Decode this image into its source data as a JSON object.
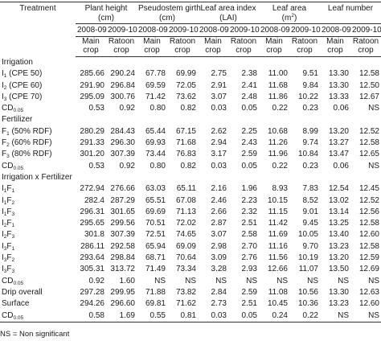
{
  "table": {
    "corner": "Treatment",
    "groups": [
      [
        {
          "t": "Plant height"
        },
        {
          "br": "(cm)"
        }
      ],
      [
        {
          "t": "Pseudostem girth"
        },
        {
          "br": "(cm)"
        }
      ],
      [
        {
          "t": "Leaf area index"
        },
        {
          "br": "(LAI)"
        }
      ],
      [
        {
          "t": "Leaf area"
        },
        {
          "br": "(m"
        },
        {
          "sup": "2"
        },
        {
          "t": ")"
        }
      ],
      [
        {
          "t": "Leaf number"
        }
      ]
    ],
    "years": [
      "2008-09",
      "2009-10",
      "2008-09",
      "2009-10",
      "2008-09",
      "2009-10",
      "2008-09",
      "2009-10",
      "2008-09",
      "2009-10"
    ],
    "crops": [
      [
        "Main",
        "crop"
      ],
      [
        "Ratoon",
        "crop"
      ],
      [
        "Main",
        "crop"
      ],
      [
        "Ratoon",
        "crop"
      ],
      [
        "Main",
        "crop"
      ],
      [
        "Ratoon",
        "crop"
      ],
      [
        "Main",
        "crop"
      ],
      [
        "Ratoon",
        "crop"
      ],
      [
        "Main",
        "crop"
      ],
      [
        "Ratoon",
        "crop"
      ]
    ],
    "rows": [
      {
        "section": "Irrigation"
      },
      {
        "label": [
          {
            "t": "I"
          },
          {
            "sub": "1"
          },
          {
            "t": " (CPE 50)"
          }
        ],
        "cells": [
          "285.66",
          "290.24",
          "67.78",
          "69.99",
          "2.75",
          "2.38",
          "11.00",
          "9.51",
          "13.30",
          "12.58"
        ]
      },
      {
        "label": [
          {
            "t": "I"
          },
          {
            "sub": "2"
          },
          {
            "t": " (CPE 60)"
          }
        ],
        "cells": [
          "291.90",
          "296.84",
          "69.59",
          "72.05",
          "2.91",
          "2.41",
          "11.68",
          "9.84",
          "13.30",
          "12.50"
        ]
      },
      {
        "label": [
          {
            "t": "I"
          },
          {
            "sub": "3"
          },
          {
            "t": " (CPE 70)"
          }
        ],
        "cells": [
          "295.09",
          "300.76",
          "71.42",
          "73.62",
          "3.07",
          "2.48",
          "11.86",
          "10.22",
          "13.33",
          "12.67"
        ]
      },
      {
        "label": [
          {
            "t": "CD"
          },
          {
            "sub": "0.05"
          }
        ],
        "cells": [
          "0.53",
          "0.92",
          "0.80",
          "0.82",
          "0.03",
          "0.05",
          "0.22",
          "0.23",
          "0.06",
          "NS"
        ]
      },
      {
        "section": "Fertilizer"
      },
      {
        "label": [
          {
            "t": "F"
          },
          {
            "sub": "1"
          },
          {
            "t": " (50% RDF)"
          }
        ],
        "cells": [
          "280.29",
          "284.43",
          "65.44",
          "67.15",
          "2.62",
          "2.25",
          "10.68",
          "8.99",
          "13.20",
          "12.52"
        ]
      },
      {
        "label": [
          {
            "t": "F"
          },
          {
            "sub": "2"
          },
          {
            "t": " (60% RDF)"
          }
        ],
        "cells": [
          "291.33",
          "296.30",
          "69.93",
          "71.68",
          "2.94",
          "2.43",
          "11.26",
          "9.74",
          "13.27",
          "12.58"
        ]
      },
      {
        "label": [
          {
            "t": "F"
          },
          {
            "sub": "3"
          },
          {
            "t": " (80% RDF)"
          }
        ],
        "cells": [
          "301.20",
          "307.39",
          "73.44",
          "76.83",
          "3.17",
          "2.59",
          "11.96",
          "10.84",
          "13.47",
          "12.65"
        ]
      },
      {
        "label": [
          {
            "t": "CD"
          },
          {
            "sub": "0.05"
          }
        ],
        "cells": [
          "0.53",
          "0.92",
          "0.80",
          "0.82",
          "0.03",
          "0.05",
          "0.22",
          "0.23",
          "0.06",
          "NS"
        ]
      },
      {
        "section": "Irrigation x Fertilizer"
      },
      {
        "label": [
          {
            "t": "I"
          },
          {
            "sub": "1"
          },
          {
            "t": "F"
          },
          {
            "sub": "1"
          }
        ],
        "cells": [
          "272.94",
          "276.66",
          "63.03",
          "65.11",
          "2.16",
          "1.96",
          "8.93",
          "7.83",
          "12.54",
          "12.45"
        ]
      },
      {
        "label": [
          {
            "t": "I"
          },
          {
            "sub": "1"
          },
          {
            "t": "F"
          },
          {
            "sub": "2"
          }
        ],
        "cells": [
          "282.4",
          "287.29",
          "65.51",
          "67.08",
          "2.46",
          "2.23",
          "10.15",
          "8.52",
          "13.02",
          "12.52"
        ]
      },
      {
        "label": [
          {
            "t": "I"
          },
          {
            "sub": "1"
          },
          {
            "t": "F"
          },
          {
            "sub": "3"
          }
        ],
        "cells": [
          "296.31",
          "301.65",
          "69.69",
          "71.13",
          "2.66",
          "2.32",
          "11.15",
          "9.01",
          "13.14",
          "12.56"
        ]
      },
      {
        "label": [
          {
            "t": "I"
          },
          {
            "sub": "2"
          },
          {
            "t": "F"
          },
          {
            "sub": "1"
          }
        ],
        "cells": [
          "295.65",
          "299.56",
          "70.51",
          "72.02",
          "2.87",
          "2.51",
          "11.42",
          "9.45",
          "13.25",
          "12.58"
        ]
      },
      {
        "label": [
          {
            "t": "I"
          },
          {
            "sub": "2"
          },
          {
            "t": "F"
          },
          {
            "sub": "3"
          }
        ],
        "cells": [
          "301.8",
          "307.39",
          "72.51",
          "74.65",
          "3.07",
          "2.58",
          "11.69",
          "10.05",
          "13.40",
          "12.60"
        ]
      },
      {
        "label": [
          {
            "t": "I"
          },
          {
            "sub": "3"
          },
          {
            "t": "F"
          },
          {
            "sub": "1"
          }
        ],
        "cells": [
          "286.11",
          "292.58",
          "65.94",
          "69.09",
          "2.98",
          "2.70",
          "11.16",
          "9.70",
          "13.23",
          "12.58"
        ]
      },
      {
        "label": [
          {
            "t": "I"
          },
          {
            "sub": "3"
          },
          {
            "t": "F"
          },
          {
            "sub": "2"
          }
        ],
        "cells": [
          "293.64",
          "298.84",
          "68.71",
          "70.64",
          "3.09",
          "2.76",
          "11.56",
          "10.19",
          "13.20",
          "12.59"
        ]
      },
      {
        "label": [
          {
            "t": "I"
          },
          {
            "sub": "3"
          },
          {
            "t": "F"
          },
          {
            "sub": "3"
          }
        ],
        "cells": [
          "305.31",
          "313.72",
          "71.49",
          "73.34",
          "3.28",
          "2.93",
          "12.66",
          "11.07",
          "13.50",
          "12.69"
        ]
      },
      {
        "label": [
          {
            "t": "CD"
          },
          {
            "sub": "0.05"
          }
        ],
        "cells": [
          "0.92",
          "1.60",
          "NS",
          "NS",
          "NS",
          "NS",
          "NS",
          "NS",
          "NS",
          "NS"
        ]
      },
      {
        "label": [
          {
            "t": "Drip overall"
          }
        ],
        "cells": [
          "297.28",
          "299.95",
          "71.88",
          "73.82",
          "2.84",
          "2.59",
          "11.08",
          "10.56",
          "13.30",
          "12.63"
        ]
      },
      {
        "label": [
          {
            "t": "Surface"
          }
        ],
        "cells": [
          "294.26",
          "296.60",
          "69.81",
          "71.62",
          "2.73",
          "2.51",
          "10.45",
          "10.36",
          "13.23",
          "12.60"
        ]
      },
      {
        "label": [
          {
            "t": "CD"
          },
          {
            "sub": "0.05"
          }
        ],
        "cells": [
          "0.58",
          "1.69",
          "0.55",
          "0.81",
          "0.03",
          "0.05",
          "0.24",
          "0.22",
          "NS",
          "NS"
        ]
      }
    ]
  },
  "footnote": "NS = Non significant"
}
